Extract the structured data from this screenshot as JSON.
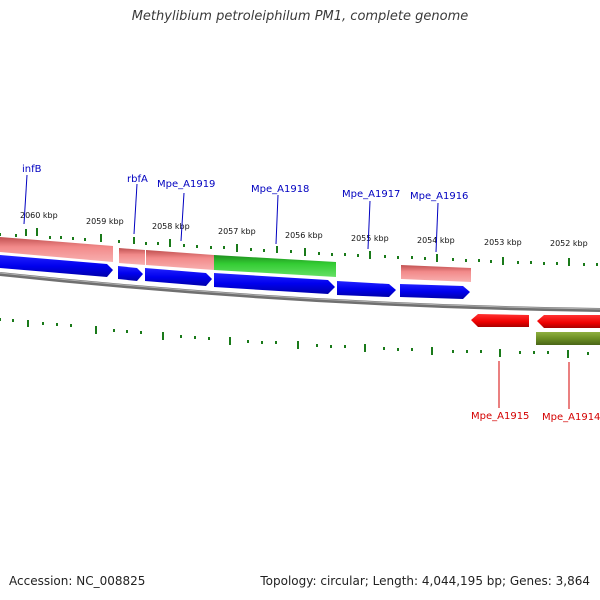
{
  "title": "Methylibium petroleiphilum PM1, complete genome",
  "footer": {
    "accession": "Accession: NC_008825",
    "summary": "Topology: circular; Length: 4,044,195 bp; Genes: 3,864"
  },
  "scale_labels": [
    "2060 kbp",
    "2059 kbp",
    "2058 kbp",
    "2057 kbp",
    "2056 kbp",
    "2055 kbp",
    "2054 kbp",
    "2053 kbp",
    "2052 kbp"
  ],
  "forward_genes": [
    {
      "name": "infB",
      "color": "#0000c0"
    },
    {
      "name": "rbfA",
      "color": "#0000c0"
    },
    {
      "name": "Mpe_A1919",
      "color": "#0000c0"
    },
    {
      "name": "Mpe_A1918",
      "color": "#0000c0"
    },
    {
      "name": "Mpe_A1917",
      "color": "#0000c0"
    },
    {
      "name": "Mpe_A1916",
      "color": "#0000c0"
    }
  ],
  "reverse_genes": [
    {
      "name": "Mpe_A1915",
      "color": "#d40000"
    },
    {
      "name": "Mpe_A1914",
      "color": "#d40000"
    }
  ],
  "colors": {
    "cds_blue": "#0000ee",
    "rna_pink": "#f08080",
    "green": "#33cc33",
    "red": "#ee0000",
    "olive": "#6b8e23",
    "backbone": "#808080",
    "tick": "#1a7a1a"
  }
}
